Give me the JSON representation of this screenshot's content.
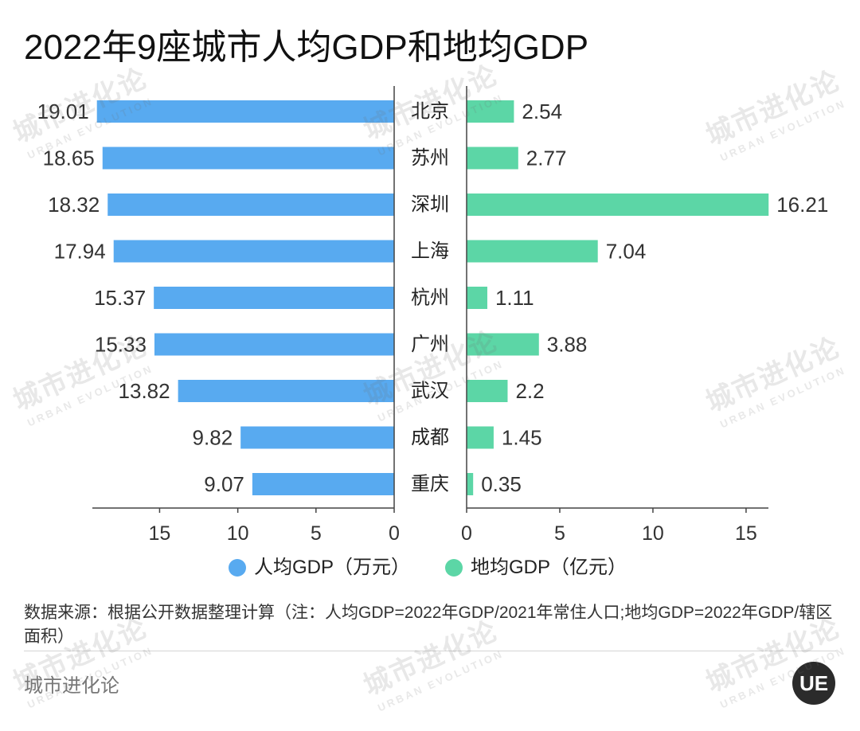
{
  "chart_data": {
    "type": "bar",
    "orientation": "horizontal",
    "title": "2022年9座城市人均GDP和地均GDP",
    "categories": [
      "北京",
      "苏州",
      "深圳",
      "上海",
      "杭州",
      "广州",
      "武汉",
      "成都",
      "重庆"
    ],
    "series": [
      {
        "name": "人均GDP（万元）",
        "side": "left",
        "color": "#58aaf0",
        "values": [
          19.01,
          18.65,
          18.32,
          17.94,
          15.37,
          15.33,
          13.82,
          9.82,
          9.07
        ],
        "xlim": [
          0,
          19.3
        ],
        "ticks": [
          0,
          5,
          10,
          15
        ]
      },
      {
        "name": "地均GDP（亿元）",
        "side": "right",
        "color": "#5cd6a6",
        "values": [
          2.54,
          2.77,
          16.21,
          7.04,
          1.11,
          3.88,
          2.2,
          1.45,
          0.35
        ],
        "xlim": [
          0,
          16.2
        ],
        "ticks": [
          0,
          5,
          10,
          15
        ]
      }
    ],
    "legend": "bottom",
    "grid": false
  },
  "footer": {
    "source_note": "数据来源：根据公开数据整理计算（注：人均GDP=2022年GDP/2021年常住人口;地均GDP=2022年GDP/辖区面积）",
    "brand": "城市进化论",
    "logo_text": "UE"
  },
  "watermark": {
    "cn": "城市进化论",
    "en": "URBAN EVOLUTION"
  }
}
